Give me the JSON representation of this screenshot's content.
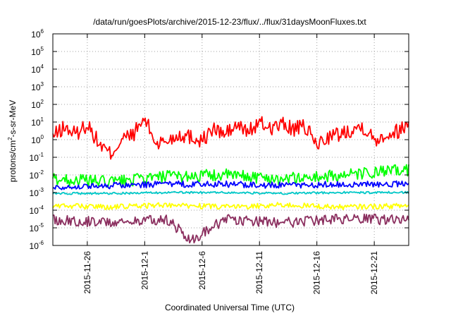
{
  "chart_data": {
    "type": "line",
    "title": "/data/run/goesPlots/archive/2015-12-23/flux/../flux/31daysMoonFluxes.txt",
    "xlabel": "Coordinated Universal Time (UTC)",
    "ylabel": {
      "base": "protons/cm",
      "sup": "2",
      "rest": "-s-sr-MeV"
    },
    "yscale": "log",
    "ylim_exponents": [
      -6,
      6
    ],
    "yticks": [
      {
        "base": "10",
        "exp": "-6"
      },
      {
        "base": "10",
        "exp": "-5"
      },
      {
        "base": "10",
        "exp": "-4"
      },
      {
        "base": "10",
        "exp": "-3"
      },
      {
        "base": "10",
        "exp": "-2"
      },
      {
        "base": "10",
        "exp": "-1"
      },
      {
        "base": "10",
        "exp": "0"
      },
      {
        "base": "10",
        "exp": "1"
      },
      {
        "base": "10",
        "exp": "2"
      },
      {
        "base": "10",
        "exp": "3"
      },
      {
        "base": "10",
        "exp": "4"
      },
      {
        "base": "10",
        "exp": "5"
      },
      {
        "base": "10",
        "exp": "6"
      }
    ],
    "xlim": [
      "2015-11-23",
      "2015-12-24"
    ],
    "xticks": [
      "2015-11-26",
      "2015-12-1",
      "2015-12-6",
      "2015-12-11",
      "2015-12-16",
      "2015-12-21"
    ],
    "grid": true,
    "legend": "none",
    "series": [
      {
        "color": "#ff0000",
        "values": [
          [
            "2015-11-23",
            1.5
          ],
          [
            "2015-11-24",
            5
          ],
          [
            "2015-11-25",
            2
          ],
          [
            "2015-11-26",
            8
          ],
          [
            "2015-11-27",
            0.6
          ],
          [
            "2015-11-28",
            0.15
          ],
          [
            "2015-11-29",
            1
          ],
          [
            "2015-11-30",
            2
          ],
          [
            "2015-12-01",
            15
          ],
          [
            "2015-12-02",
            0.6
          ],
          [
            "2015-12-03",
            0.9
          ],
          [
            "2015-12-04",
            2
          ],
          [
            "2015-12-05",
            1.5
          ],
          [
            "2015-12-06",
            0.9
          ],
          [
            "2015-12-07",
            4
          ],
          [
            "2015-12-08",
            2
          ],
          [
            "2015-12-09",
            6
          ],
          [
            "2015-12-10",
            3
          ],
          [
            "2015-12-11",
            8
          ],
          [
            "2015-12-12",
            5
          ],
          [
            "2015-12-13",
            7
          ],
          [
            "2015-12-14",
            4
          ],
          [
            "2015-12-15",
            5
          ],
          [
            "2015-12-16",
            0.5
          ],
          [
            "2015-12-17",
            1.5
          ],
          [
            "2015-12-18",
            2
          ],
          [
            "2015-12-19",
            4
          ],
          [
            "2015-12-20",
            6
          ],
          [
            "2015-12-21",
            1
          ],
          [
            "2015-12-22",
            2
          ],
          [
            "2015-12-23",
            3
          ],
          [
            "2015-12-24",
            8
          ]
        ]
      },
      {
        "color": "#00ff00",
        "values": [
          [
            "2015-11-23",
            0.006
          ],
          [
            "2015-11-28",
            0.004
          ],
          [
            "2015-12-03",
            0.008
          ],
          [
            "2015-12-08",
            0.01
          ],
          [
            "2015-12-13",
            0.006
          ],
          [
            "2015-12-18",
            0.009
          ],
          [
            "2015-12-24",
            0.02
          ]
        ]
      },
      {
        "color": "#0000ff",
        "values": [
          [
            "2015-11-23",
            0.002
          ],
          [
            "2015-11-28",
            0.0025
          ],
          [
            "2015-12-03",
            0.003
          ],
          [
            "2015-12-08",
            0.003
          ],
          [
            "2015-12-13",
            0.0025
          ],
          [
            "2015-12-18",
            0.003
          ],
          [
            "2015-12-24",
            0.003
          ]
        ]
      },
      {
        "color": "#00c8c8",
        "values": [
          [
            "2015-11-23",
            0.0009
          ],
          [
            "2015-11-28",
            0.0009
          ],
          [
            "2015-12-03",
            0.001
          ],
          [
            "2015-12-08",
            0.001
          ],
          [
            "2015-12-13",
            0.0009
          ],
          [
            "2015-12-18",
            0.001
          ],
          [
            "2015-12-24",
            0.001
          ]
        ]
      },
      {
        "color": "#ffff00",
        "values": [
          [
            "2015-11-23",
            0.00018
          ],
          [
            "2015-11-28",
            0.00015
          ],
          [
            "2015-12-03",
            0.0002
          ],
          [
            "2015-12-08",
            0.00015
          ],
          [
            "2015-12-13",
            0.0002
          ],
          [
            "2015-12-18",
            0.00015
          ],
          [
            "2015-12-24",
            0.00018
          ]
        ]
      },
      {
        "color": "#8b2f5f",
        "values": [
          [
            "2015-11-23",
            3e-05
          ],
          [
            "2015-11-28",
            2e-05
          ],
          [
            "2015-12-03",
            3e-05
          ],
          [
            "2015-12-05",
            2e-06
          ],
          [
            "2015-12-08",
            3e-05
          ],
          [
            "2015-12-13",
            2e-05
          ],
          [
            "2015-12-18",
            3e-05
          ],
          [
            "2015-12-24",
            3e-05
          ]
        ]
      }
    ]
  }
}
